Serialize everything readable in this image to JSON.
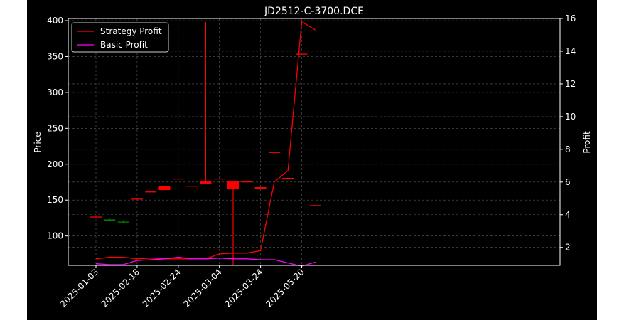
{
  "chart_data": {
    "type": "candlestick-line",
    "title": "JD2512-C-3700.DCE",
    "ylabel_left": "Price",
    "ylabel_right": "Profit",
    "xlabel": "",
    "grid": true,
    "legend_position": "top-left",
    "x_tick_labels": [
      "2025-01-03",
      "2025-02-18",
      "2025-02-24",
      "2025-03-04",
      "2025-03-24",
      "2025-05-20"
    ],
    "y_left_ticks": [
      100,
      150,
      200,
      250,
      300,
      350,
      400
    ],
    "y_right_ticks": [
      2,
      4,
      6,
      8,
      10,
      12,
      14,
      16
    ],
    "ylim_left": [
      59,
      403
    ],
    "ylim_right": [
      0.9,
      16
    ],
    "colors": {
      "background": "#000000",
      "up": "#008000",
      "down": "#ff0000",
      "strategy": "#ff0000",
      "basic": "#ff00ff",
      "grid": "#808080"
    },
    "candles": [
      {
        "open": 127,
        "high": 127,
        "low": 127,
        "close": 127
      },
      {
        "open": 121,
        "high": 124,
        "low": 121,
        "close": 123
      },
      {
        "open": 119,
        "high": 122,
        "low": 118,
        "close": 120
      },
      {
        "open": 152,
        "high": 152,
        "low": 152,
        "close": 152
      },
      {
        "open": 162,
        "high": 162,
        "low": 162,
        "close": 162
      },
      {
        "open": 170,
        "high": 170,
        "low": 164,
        "close": 164
      },
      {
        "open": 180,
        "high": 180,
        "low": 180,
        "close": 180
      },
      {
        "open": 170,
        "high": 170,
        "low": 170,
        "close": 170
      },
      {
        "open": 176,
        "high": 398,
        "low": 173,
        "close": 173
      },
      {
        "open": 180,
        "high": 180,
        "low": 180,
        "close": 180
      },
      {
        "open": 176,
        "high": 176,
        "low": 59,
        "close": 165
      },
      {
        "open": 176,
        "high": 176,
        "low": 176,
        "close": 176
      },
      {
        "open": 168,
        "high": 168,
        "low": 166,
        "close": 166
      },
      {
        "open": 217,
        "high": 217,
        "low": 217,
        "close": 217
      },
      {
        "open": 181,
        "high": 181,
        "low": 181,
        "close": 181
      },
      {
        "open": 354,
        "high": 354,
        "low": 354,
        "close": 354
      },
      {
        "open": 143,
        "high": 143,
        "low": 143,
        "close": 143
      }
    ],
    "series": [
      {
        "name": "Strategy Profit",
        "axis": "right",
        "values": [
          1.3,
          1.4,
          1.4,
          1.3,
          1.35,
          1.3,
          1.3,
          1.3,
          1.3,
          1.6,
          1.65,
          1.65,
          1.8,
          6.0,
          6.7,
          15.8,
          15.3
        ]
      },
      {
        "name": "Basic Profit",
        "axis": "right",
        "values": [
          1.0,
          0.95,
          0.95,
          1.2,
          1.25,
          1.3,
          1.4,
          1.3,
          1.3,
          1.35,
          1.3,
          1.3,
          1.25,
          1.25,
          1.05,
          0.85,
          1.1
        ]
      }
    ],
    "tick_positions": [
      0,
      3,
      6,
      9,
      12,
      15
    ]
  }
}
